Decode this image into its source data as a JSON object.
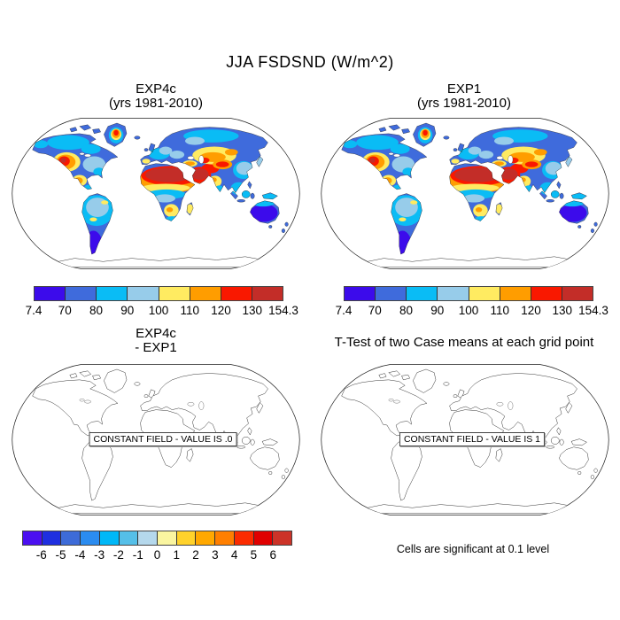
{
  "figure_title": "JJA FSDSND (W/m^2)",
  "panels": {
    "top_left": {
      "title1": "EXP4c",
      "title2": "(yrs 1981-2010)"
    },
    "top_right": {
      "title1": "EXP1",
      "title2": "(yrs 1981-2010)"
    },
    "bottom_left": {
      "title1": "EXP4c",
      "title2": "- EXP1",
      "annotation": "CONSTANT FIELD - VALUE IS .0"
    },
    "bottom_right": {
      "title": "T-Test of two Case means at each grid point",
      "annotation": "CONSTANT FIELD - VALUE IS 1",
      "footnote": "Cells are significant at 0.1 level"
    }
  },
  "colorbar_main": {
    "labels": [
      "7.4",
      "70",
      "80",
      "90",
      "100",
      "110",
      "120",
      "130",
      "154.3"
    ],
    "colors": [
      "#3c0beb",
      "#3f6bdc",
      "#0abcf5",
      "#97ccea",
      "#ffeb61",
      "#ff9d00",
      "#f91800",
      "#c32d28"
    ]
  },
  "colorbar_diff": {
    "labels": [
      "-6",
      "-5",
      "-4",
      "-3",
      "-2",
      "-1",
      "0",
      "1",
      "2",
      "3",
      "4",
      "5",
      "6"
    ],
    "colors": [
      "#4b0ff0",
      "#1f2fe0",
      "#3d6bd8",
      "#2b8cf0",
      "#00b8f8",
      "#55bfe8",
      "#b5d8ec",
      "#faf5a0",
      "#ffd22b",
      "#ffa800",
      "#ff7f00",
      "#fb2b00",
      "#e00000",
      "#cc3328"
    ]
  },
  "chart_data": [
    {
      "type": "heatmap",
      "panel": "top-left",
      "title": "EXP4c (yrs 1981-2010)",
      "variable": "JJA FSDSND (W/m^2)",
      "projection": "robinson world map, filled contours over land, oceans and Antarctica blank",
      "colorbar_ticks": [
        7.4,
        70,
        80,
        90,
        100,
        110,
        120,
        130,
        154.3
      ],
      "colorbar_colors": [
        "#3c0beb",
        "#3f6bdc",
        "#0abcf5",
        "#97ccea",
        "#ffeb61",
        "#ff9d00",
        "#f91800",
        "#c32d28"
      ],
      "value_min": 7.4,
      "value_max": 154.3,
      "features": "high values (red >130) over Sahara, Arabia, Middle East; orange/yellow over western US, Mexico, central Asia, Greenland interior; blues over Canada, Siberia, Europe, equatorial Africa, Amazon, SE Asia; deep blue/violet over southern South America and Australia"
    },
    {
      "type": "heatmap",
      "panel": "top-right",
      "title": "EXP1 (yrs 1981-2010)",
      "variable": "JJA FSDSND (W/m^2)",
      "projection": "robinson world map, filled contours over land, oceans and Antarctica blank",
      "colorbar_ticks": [
        7.4,
        70,
        80,
        90,
        100,
        110,
        120,
        130,
        154.3
      ],
      "colorbar_colors": [
        "#3c0beb",
        "#3f6bdc",
        "#0abcf5",
        "#97ccea",
        "#ffeb61",
        "#ff9d00",
        "#f91800",
        "#c32d28"
      ],
      "value_min": 7.4,
      "value_max": 154.3,
      "features": "identical pattern to EXP4c panel (difference field is constant 0)"
    },
    {
      "type": "heatmap",
      "panel": "bottom-left",
      "title": "EXP4c - EXP1",
      "projection": "robinson world map, outline only",
      "colorbar_ticks": [
        -6,
        -5,
        -4,
        -3,
        -2,
        -1,
        0,
        1,
        2,
        3,
        4,
        5,
        6
      ],
      "colorbar_colors": [
        "#4b0ff0",
        "#1f2fe0",
        "#3d6bd8",
        "#2b8cf0",
        "#00b8f8",
        "#55bfe8",
        "#b5d8ec",
        "#faf5a0",
        "#ffd22b",
        "#ffa800",
        "#ff7f00",
        "#fb2b00",
        "#e00000",
        "#cc3328"
      ],
      "constant_field": "CONSTANT FIELD - VALUE IS .0"
    },
    {
      "type": "map",
      "panel": "bottom-right",
      "title": "T-Test of two Case means at each grid point",
      "projection": "robinson world map, outline only",
      "constant_field": "CONSTANT FIELD - VALUE IS 1",
      "footnote": "Cells are significant at 0.1 level"
    }
  ]
}
